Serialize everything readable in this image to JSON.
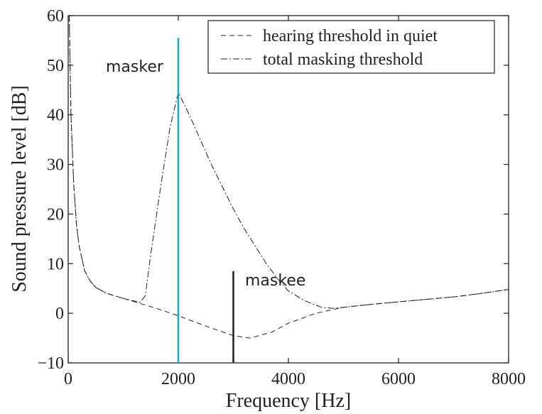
{
  "chart_data": {
    "type": "line",
    "xlabel": "Frequency [Hz]",
    "ylabel": "Sound pressure level [dB]",
    "xlim": [
      0,
      8000
    ],
    "ylim": [
      -10,
      60
    ],
    "x_ticks": [
      0,
      2000,
      4000,
      6000,
      8000
    ],
    "x_tick_labels": [
      "0",
      "2000",
      "4000",
      "6000",
      "8000"
    ],
    "y_ticks": [
      -10,
      0,
      10,
      20,
      30,
      40,
      50,
      60
    ],
    "y_tick_labels": [
      "−10",
      "0",
      "10",
      "20",
      "30",
      "40",
      "50",
      "60"
    ],
    "grid": false,
    "legend_position": "top-right",
    "series": [
      {
        "name": "hearing threshold in quiet",
        "style": "dashed",
        "color": "#231f20",
        "x": [
          20,
          50,
          100,
          150,
          200,
          300,
          400,
          500,
          700,
          1000,
          1300,
          1600,
          2000,
          2500,
          3000,
          3300,
          3700,
          4000,
          4500,
          5000,
          5500,
          6000,
          6500,
          7000,
          7500,
          8000
        ],
        "y": [
          60,
          40,
          26,
          18,
          13.5,
          8.5,
          6.5,
          5.2,
          4.0,
          3.0,
          2.0,
          1.0,
          -0.5,
          -2.6,
          -4.5,
          -5.0,
          -3.8,
          -2.0,
          0.0,
          1.2,
          1.8,
          2.3,
          2.8,
          3.3,
          4.0,
          4.8
        ]
      },
      {
        "name": "total masking threshold",
        "style": "dashdot",
        "color": "#231f20",
        "x": [
          20,
          50,
          100,
          150,
          200,
          300,
          400,
          500,
          700,
          1000,
          1300,
          1400,
          1500,
          1700,
          1850,
          2000,
          2200,
          2400,
          2600,
          2800,
          3000,
          3200,
          3400,
          3600,
          3800,
          4000,
          4300,
          4600,
          4800,
          5000,
          5500,
          6000,
          6500,
          7000,
          7500,
          8000
        ],
        "y": [
          60,
          40,
          26,
          18,
          13.5,
          8.5,
          6.5,
          5.2,
          4.0,
          3.0,
          2.2,
          3.5,
          12.0,
          27.0,
          37.5,
          44.5,
          40.0,
          35.0,
          30.0,
          25.5,
          21.0,
          17.0,
          13.5,
          10.0,
          7.0,
          4.5,
          2.5,
          1.2,
          1.0,
          1.2,
          1.8,
          2.3,
          2.8,
          3.3,
          4.0,
          4.8
        ]
      }
    ],
    "markers": [
      {
        "label": "masker",
        "x": 2000,
        "y_from": -10,
        "y_to": 55.5,
        "color": "#1ba1d6"
      },
      {
        "label": "maskee",
        "x": 3000,
        "y_from": -10,
        "y_to": 8.5,
        "color": "#231f20"
      }
    ]
  }
}
